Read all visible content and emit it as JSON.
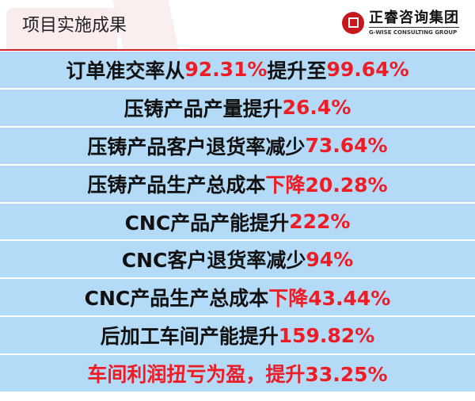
{
  "header": {
    "title": "项目实施成果",
    "logo": {
      "name_cn": "正睿咨询集团",
      "name_en": "G-WISE CONSULTING GROUP"
    }
  },
  "colors": {
    "accent": "#ee1c25",
    "row_bg": "#b3dbf8",
    "rule": "#d9212b"
  },
  "results": [
    {
      "text": "订单准交率从",
      "highlight": "92.31%",
      "text2": "提升至",
      "highlight2": "99.64%"
    },
    {
      "text": "压铸产品产量提升",
      "highlight": "26.4%"
    },
    {
      "text": "压铸产品客户退货率减少",
      "highlight": "73.64%"
    },
    {
      "text": "压铸产品生产总成本",
      "highlight": "下降20.28%"
    },
    {
      "text": "CNC产品产能提升",
      "highlight": "222%"
    },
    {
      "text": "CNC客户退货率减少",
      "highlight": "94%"
    },
    {
      "text": "CNC产品生产总成本",
      "highlight": "下降43.44%"
    },
    {
      "text": "后加工车间产能提升",
      "highlight": "159.82%"
    },
    {
      "text": "",
      "highlight": "车间利润扭亏为盈，提升33.25%"
    }
  ]
}
